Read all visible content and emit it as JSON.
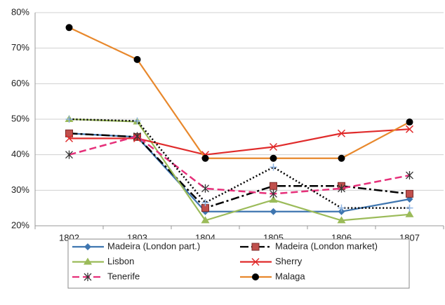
{
  "chart_data": {
    "type": "line",
    "categories": [
      "1802",
      "1803",
      "1804",
      "1805",
      "1806",
      "1807"
    ],
    "ylim": [
      20,
      80
    ],
    "yticks": [
      {
        "value": 20,
        "label": "20%"
      },
      {
        "value": 30,
        "label": "30%"
      },
      {
        "value": 40,
        "label": "40%"
      },
      {
        "value": 50,
        "label": "50%"
      },
      {
        "value": 60,
        "label": "60%"
      },
      {
        "value": 70,
        "label": "70%"
      },
      {
        "value": 80,
        "label": "80%"
      }
    ],
    "grid": true,
    "legend": "bottom",
    "series": [
      {
        "name": "Madeira (London part.)",
        "color": "#3f76b0",
        "marker": "diamond",
        "marker_color": "#3f76b0",
        "dash": "solid",
        "values": [
          46,
          45,
          24,
          24,
          24,
          27.5
        ]
      },
      {
        "name": "Madeira (London market)",
        "color": "#000000",
        "marker": "square",
        "marker_color": "#c0504d",
        "dash": "dashdot",
        "values": [
          46,
          45,
          25,
          31.2,
          31.2,
          29
        ]
      },
      {
        "name": "Lisbon",
        "color": "#9bbb59",
        "marker": "triangle",
        "marker_color": "#9bbb59",
        "dash": "solid",
        "values": [
          50,
          49.3,
          21.5,
          27.3,
          21.5,
          23.2
        ]
      },
      {
        "name": "Sherry",
        "color": "#e02b2b",
        "marker": "x",
        "marker_color": "#e02b2b",
        "dash": "solid",
        "values": [
          44.6,
          44.6,
          40,
          42.2,
          46,
          47.2
        ]
      },
      {
        "name": "Tenerife",
        "color": "#e6307a",
        "marker": "asterisk",
        "marker_color": "#333333",
        "dash": "dashed",
        "values": [
          40,
          45.2,
          30.5,
          29,
          30.5,
          34.2
        ]
      },
      {
        "name": "Malaga",
        "color": "#e8882c",
        "marker": "circle",
        "marker_color": "#000000",
        "dash": "solid",
        "values": [
          75.8,
          66.8,
          39,
          39,
          39,
          49.2
        ]
      },
      {
        "color": "#000000",
        "marker": "plus",
        "marker_color": "#8eb4e3",
        "dash": "dotted",
        "values": [
          50,
          49.5,
          26.5,
          36.5,
          25,
          25
        ]
      }
    ]
  }
}
